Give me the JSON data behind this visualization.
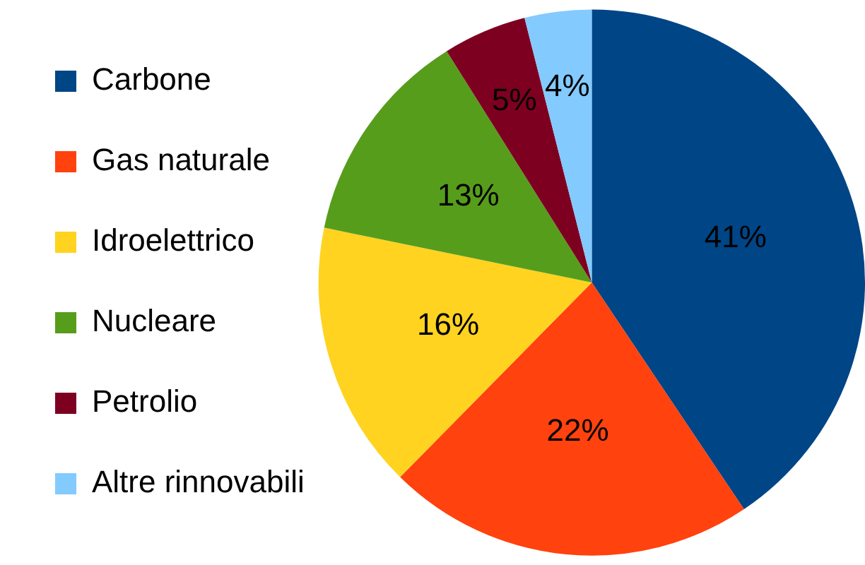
{
  "chart_data": {
    "type": "pie",
    "categories": [
      "Carbone",
      "Gas naturale",
      "Idroelettrico",
      "Nucleare",
      "Petrolio",
      "Altre rinnovabili"
    ],
    "values": [
      41,
      22,
      16,
      13,
      5,
      4
    ],
    "colors": [
      "#004586",
      "#ff420e",
      "#ffd320",
      "#579d1c",
      "#7e0021",
      "#83caff"
    ],
    "value_labels": [
      "41%",
      "22%",
      "16%",
      "13%",
      "5%",
      "4%"
    ],
    "legend": "left"
  }
}
